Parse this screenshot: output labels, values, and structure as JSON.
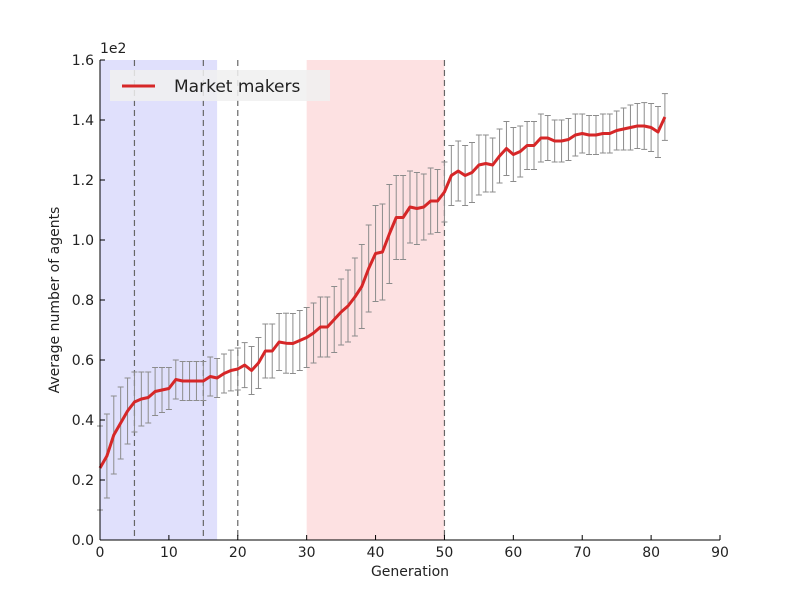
{
  "chart_data": {
    "type": "line",
    "xlabel": "Generation",
    "ylabel": "Average number of agents",
    "y_multiplier_label": "1e2",
    "xlim": [
      0,
      90
    ],
    "ylim": [
      0.0,
      1.6
    ],
    "xticks": [
      0,
      10,
      20,
      30,
      40,
      50,
      60,
      70,
      80,
      90
    ],
    "yticks": [
      0.0,
      0.2,
      0.4,
      0.6,
      0.8,
      1.0,
      1.2,
      1.4,
      1.6
    ],
    "ytick_labels": [
      "0.0",
      "0.2",
      "0.4",
      "0.6",
      "0.8",
      "1.0",
      "1.2",
      "1.4",
      "1.6"
    ],
    "grid": false,
    "legend_position": "top-left",
    "shaded_regions": [
      {
        "x_start": 0,
        "x_end": 17,
        "color": "#e0e0fc"
      },
      {
        "x_start": 30,
        "x_end": 50,
        "color": "#fde1e2"
      }
    ],
    "vertical_lines": [
      5,
      15,
      20,
      50
    ],
    "series": [
      {
        "name": "Market makers",
        "color": "#d62728",
        "errorbar_color": "#8c8c8c",
        "x": [
          0,
          1,
          2,
          3,
          4,
          5,
          6,
          7,
          8,
          9,
          10,
          11,
          12,
          13,
          14,
          15,
          16,
          17,
          18,
          19,
          20,
          21,
          22,
          23,
          24,
          25,
          26,
          27,
          28,
          29,
          30,
          31,
          32,
          33,
          34,
          35,
          36,
          37,
          38,
          39,
          40,
          41,
          42,
          43,
          44,
          45,
          46,
          47,
          48,
          49,
          50,
          51,
          52,
          53,
          54,
          55,
          56,
          57,
          58,
          59,
          60,
          61,
          62,
          63,
          64,
          65,
          66,
          67,
          68,
          69,
          70,
          71,
          72,
          73,
          74,
          75,
          76,
          77,
          78,
          79,
          80,
          81,
          82
        ],
        "y": [
          0.24,
          0.28,
          0.35,
          0.39,
          0.43,
          0.46,
          0.47,
          0.475,
          0.495,
          0.5,
          0.505,
          0.535,
          0.53,
          0.53,
          0.53,
          0.53,
          0.545,
          0.54,
          0.555,
          0.565,
          0.57,
          0.583,
          0.565,
          0.59,
          0.63,
          0.63,
          0.66,
          0.656,
          0.655,
          0.665,
          0.675,
          0.69,
          0.71,
          0.71,
          0.735,
          0.76,
          0.78,
          0.81,
          0.845,
          0.905,
          0.955,
          0.96,
          1.02,
          1.075,
          1.075,
          1.11,
          1.105,
          1.11,
          1.13,
          1.13,
          1.16,
          1.215,
          1.23,
          1.215,
          1.225,
          1.25,
          1.255,
          1.25,
          1.28,
          1.305,
          1.285,
          1.295,
          1.315,
          1.315,
          1.34,
          1.34,
          1.33,
          1.33,
          1.335,
          1.35,
          1.355,
          1.35,
          1.35,
          1.355,
          1.355,
          1.365,
          1.37,
          1.375,
          1.38,
          1.38,
          1.375,
          1.36,
          1.41
        ],
        "err": [
          0.14,
          0.14,
          0.13,
          0.12,
          0.11,
          0.1,
          0.09,
          0.085,
          0.08,
          0.075,
          0.07,
          0.065,
          0.065,
          0.065,
          0.065,
          0.065,
          0.065,
          0.065,
          0.065,
          0.068,
          0.07,
          0.075,
          0.08,
          0.085,
          0.09,
          0.09,
          0.095,
          0.1,
          0.1,
          0.1,
          0.1,
          0.1,
          0.1,
          0.1,
          0.11,
          0.11,
          0.12,
          0.13,
          0.14,
          0.145,
          0.16,
          0.16,
          0.165,
          0.14,
          0.14,
          0.12,
          0.12,
          0.11,
          0.11,
          0.105,
          0.1,
          0.1,
          0.1,
          0.1,
          0.1,
          0.1,
          0.095,
          0.09,
          0.09,
          0.09,
          0.09,
          0.085,
          0.08,
          0.08,
          0.08,
          0.075,
          0.07,
          0.07,
          0.07,
          0.07,
          0.065,
          0.065,
          0.065,
          0.065,
          0.065,
          0.065,
          0.07,
          0.075,
          0.075,
          0.078,
          0.08,
          0.085,
          0.078
        ]
      }
    ]
  }
}
